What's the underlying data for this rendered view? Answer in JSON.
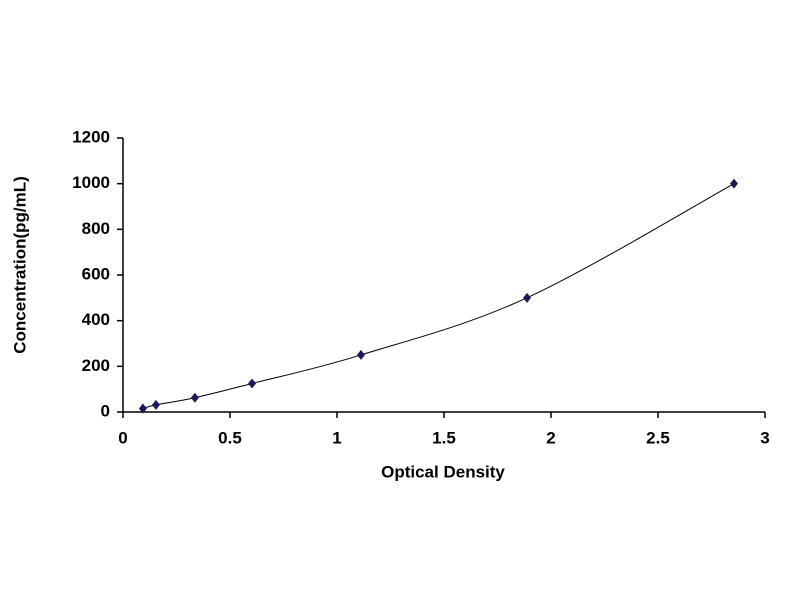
{
  "chart_data": {
    "type": "scatter",
    "x_label": "Optical Density",
    "y_label": "Concentration(pg/mL)",
    "series": [
      {
        "color": "#1a1a5e",
        "x": [
          0.093,
          0.154,
          0.336,
          0.603,
          1.112,
          1.888,
          2.855
        ],
        "values": [
          15.6,
          31.25,
          62.5,
          125,
          250,
          500,
          1000
        ]
      }
    ],
    "trendline": true,
    "xlim": [
      0,
      3
    ],
    "xticks": [
      0,
      0.5,
      1,
      1.5,
      2,
      2.5,
      3
    ],
    "ylim": [
      0,
      1200
    ],
    "yticks": [
      0,
      200,
      400,
      600,
      800,
      1000,
      1200
    ],
    "grid": false
  }
}
